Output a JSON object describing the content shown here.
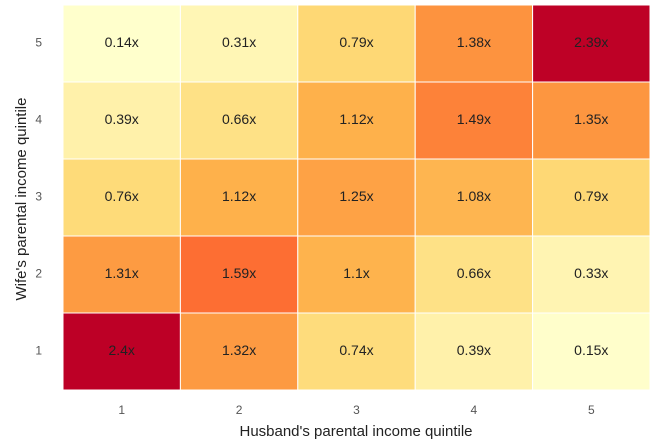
{
  "chart_data": {
    "type": "heatmap",
    "x_label": "Husband's parental income quintile",
    "y_label": "Wife's parental income quintile",
    "x_categories": [
      "1",
      "2",
      "3",
      "4",
      "5"
    ],
    "y_categories": [
      "1",
      "2",
      "3",
      "4",
      "5"
    ],
    "colormap": "YlOrRd",
    "values": [
      [
        2.4,
        1.32,
        0.74,
        0.39,
        0.15
      ],
      [
        1.31,
        1.59,
        1.1,
        0.66,
        0.33
      ],
      [
        0.76,
        1.12,
        1.25,
        1.08,
        0.79
      ],
      [
        0.39,
        0.66,
        1.12,
        1.49,
        1.35
      ],
      [
        0.14,
        0.31,
        0.79,
        1.38,
        2.39
      ]
    ],
    "value_labels": [
      [
        "2.4x",
        "1.32x",
        "0.74x",
        "0.39x",
        "0.15x"
      ],
      [
        "1.31x",
        "1.59x",
        "1.1x",
        "0.66x",
        "0.33x"
      ],
      [
        "0.76x",
        "1.12x",
        "1.25x",
        "1.08x",
        "0.79x"
      ],
      [
        "0.39x",
        "0.66x",
        "1.12x",
        "1.49x",
        "1.35x"
      ],
      [
        "0.14x",
        "0.31x",
        "0.79x",
        "1.38x",
        "2.39x"
      ]
    ]
  }
}
